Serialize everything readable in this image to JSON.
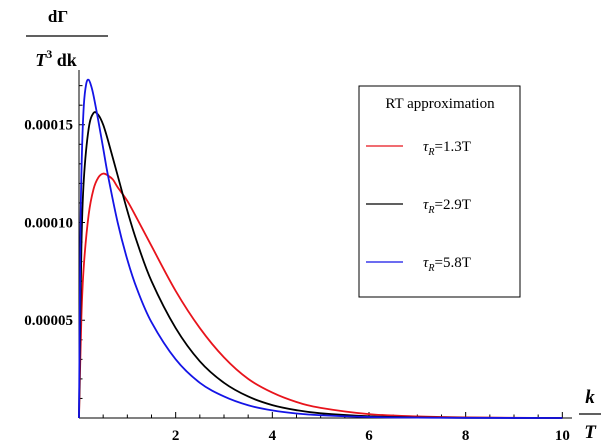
{
  "chart_data": {
    "type": "line",
    "ylabel": {
      "num": "dΓ",
      "den_var": "T",
      "den_exp": "3",
      "den_rest": " dk"
    },
    "xlabel": {
      "num": "k",
      "den": "T"
    },
    "xlim": [
      0,
      10.2
    ],
    "ylim": [
      0,
      0.000178
    ],
    "x_ticks": [
      2,
      4,
      6,
      8,
      10
    ],
    "y_ticks": [
      5e-05,
      0.0001,
      0.00015
    ],
    "y_tick_labels": [
      "0.00005",
      "0.00010",
      "0.00015"
    ],
    "x_tick_labels": [
      "2",
      "4",
      "6",
      "8",
      "10"
    ],
    "legend": {
      "title": "RT approximation",
      "placement": "top-right"
    },
    "series": [
      {
        "name": "τR=1.3T",
        "label_sym": "τ",
        "label_sub": "R",
        "label_rest": "=1.3T",
        "color": "#e8141c",
        "x": [
          0,
          0.05,
          0.1,
          0.2,
          0.3,
          0.4,
          0.5,
          0.6,
          0.7,
          0.8,
          1.0,
          1.2,
          1.5,
          2.0,
          2.5,
          3.0,
          3.5,
          4.0,
          4.5,
          5.0,
          6.0,
          7.0,
          8.0,
          9.0,
          10.0
        ],
        "y": [
          0,
          5.2e-05,
          7.8e-05,
          0.000104,
          0.000117,
          0.000123,
          0.000125,
          0.000124,
          0.000122,
          0.000118,
          0.000111,
          0.000102,
          8.8e-05,
          6.5e-05,
          4.6e-05,
          3.1e-05,
          2e-05,
          1.3e-05,
          8.2e-06,
          5.2e-06,
          2e-06,
          8e-07,
          3e-07,
          1e-07,
          4e-08
        ]
      },
      {
        "name": "τR=2.9T",
        "label_sym": "τ",
        "label_sub": "R",
        "label_rest": "=2.9T",
        "color": "#000000",
        "x": [
          0,
          0.05,
          0.1,
          0.2,
          0.3,
          0.4,
          0.5,
          0.6,
          0.8,
          1.0,
          1.2,
          1.5,
          2.0,
          2.5,
          3.0,
          3.5,
          4.0,
          4.5,
          5.0,
          6.0,
          7.0,
          8.0,
          9.0,
          10.0
        ],
        "y": [
          0,
          8.8e-05,
          0.000122,
          0.000148,
          0.000156,
          0.000155,
          0.00015,
          0.000142,
          0.000124,
          0.000106,
          9e-05,
          7e-05,
          4.6e-05,
          2.9e-05,
          1.8e-05,
          1.1e-05,
          6.6e-06,
          4e-06,
          2.4e-06,
          9e-07,
          3e-07,
          1e-07,
          4e-08,
          1e-08
        ]
      },
      {
        "name": "τR=5.8T",
        "label_sym": "τ",
        "label_sub": "R",
        "label_rest": "=5.8T",
        "color": "#1414e6",
        "x": [
          0,
          0.03,
          0.06,
          0.1,
          0.15,
          0.2,
          0.25,
          0.3,
          0.4,
          0.5,
          0.6,
          0.8,
          1.0,
          1.2,
          1.5,
          2.0,
          2.5,
          3.0,
          3.5,
          4.0,
          4.5,
          5.0,
          6.0,
          7.0,
          8.0,
          10.0
        ],
        "y": [
          0,
          9.5e-05,
          0.000135,
          0.00016,
          0.000171,
          0.000173,
          0.00017,
          0.000165,
          0.000152,
          0.000138,
          0.000124,
          0.0001,
          8.1e-05,
          6.6e-05,
          4.9e-05,
          3e-05,
          1.8e-05,
          1.1e-05,
          6.5e-06,
          3.9e-06,
          2.3e-06,
          1.4e-06,
          5e-07,
          2e-07,
          6e-08,
          1e-08
        ]
      }
    ],
    "grid": false
  }
}
